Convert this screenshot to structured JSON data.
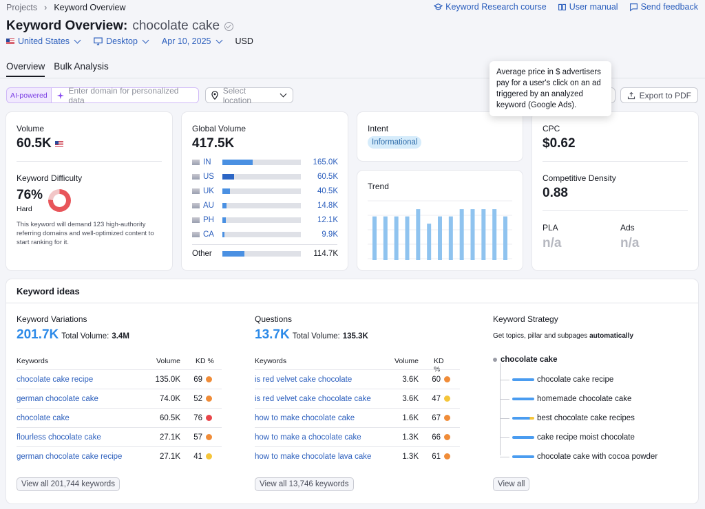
{
  "breadcrumb": {
    "root": "Projects",
    "current": "Keyword Overview"
  },
  "toplinks": {
    "course": "Keyword Research course",
    "manual": "User manual",
    "feedback": "Send feedback"
  },
  "title": {
    "label": "Keyword Overview:",
    "keyword": "chocolate cake"
  },
  "filters": {
    "country": "United States",
    "device": "Desktop",
    "date": "Apr 10, 2025",
    "currency": "USD"
  },
  "tabs": [
    "Overview",
    "Bulk Analysis"
  ],
  "ai": {
    "tag": "AI-powered",
    "placeholder": "Enter domain for personalized data",
    "location_placeholder": "Select location"
  },
  "buttons": {
    "small_count": "0",
    "export": "Export to PDF"
  },
  "tooltip": "Average price in $ advertisers pay for a user's click on an ad triggered by an analyzed keyword (Google Ads).",
  "volume": {
    "label": "Volume",
    "value": "60.5K"
  },
  "kd": {
    "label": "Keyword Difficulty",
    "value": "76%",
    "level": "Hard",
    "percent": 76,
    "text": "This keyword will demand 123 high-authority referring domains and well-optimized content to start ranking for it."
  },
  "global": {
    "label": "Global Volume",
    "value": "417.5K",
    "rows": [
      {
        "code": "IN",
        "value": "165.0K",
        "fill": 0.39
      },
      {
        "code": "US",
        "value": "60.5K",
        "fill": 0.15
      },
      {
        "code": "UK",
        "value": "40.5K",
        "fill": 0.1
      },
      {
        "code": "AU",
        "value": "14.8K",
        "fill": 0.05
      },
      {
        "code": "PH",
        "value": "12.1K",
        "fill": 0.04
      },
      {
        "code": "CA",
        "value": "9.9K",
        "fill": 0.03
      }
    ],
    "other": {
      "label": "Other",
      "value": "114.7K",
      "fill": 0.28
    }
  },
  "intent": {
    "label": "Intent",
    "value": "Informational"
  },
  "trend": {
    "label": "Trend",
    "values": [
      0.72,
      0.72,
      0.72,
      0.72,
      0.84,
      0.6,
      0.72,
      0.72,
      0.84,
      0.84,
      0.84,
      0.84,
      0.72
    ]
  },
  "cpc": {
    "label": "CPC",
    "value": "$0.62"
  },
  "density": {
    "label": "Competitive Density",
    "value": "0.88"
  },
  "pla": {
    "label": "PLA",
    "value": "n/a"
  },
  "ads": {
    "label": "Ads",
    "value": "n/a"
  },
  "ideas": {
    "title": "Keyword ideas",
    "variations": {
      "title": "Keyword Variations",
      "count": "201.7K",
      "total_label": "Total Volume:",
      "total": "3.4M",
      "head": {
        "kw": "Keywords",
        "vol": "Volume",
        "kd": "KD %"
      },
      "rows": [
        {
          "kw": "chocolate cake recipe",
          "vol": "135.0K",
          "kd": "69",
          "color": "#f08c38"
        },
        {
          "kw": "german chocolate cake",
          "vol": "74.0K",
          "kd": "52",
          "color": "#f08c38"
        },
        {
          "kw": "chocolate cake",
          "vol": "60.5K",
          "kd": "76",
          "color": "#e8454a"
        },
        {
          "kw": "flourless chocolate cake",
          "vol": "27.1K",
          "kd": "57",
          "color": "#f08c38"
        },
        {
          "kw": "german chocolate cake recipe",
          "vol": "27.1K",
          "kd": "41",
          "color": "#f5c53a"
        }
      ],
      "viewall": "View all 201,744 keywords"
    },
    "questions": {
      "title": "Questions",
      "count": "13.7K",
      "total_label": "Total Volume:",
      "total": "135.3K",
      "head": {
        "kw": "Keywords",
        "vol": "Volume",
        "kd": "KD %"
      },
      "rows": [
        {
          "kw": "is red velvet cake chocolate",
          "vol": "3.6K",
          "kd": "60",
          "color": "#f08c38"
        },
        {
          "kw": "is red velvet cake chocolate cake",
          "vol": "3.6K",
          "kd": "47",
          "color": "#f5c53a"
        },
        {
          "kw": "how to make chocolate cake",
          "vol": "1.6K",
          "kd": "67",
          "color": "#f08c38"
        },
        {
          "kw": "how to make a chocolate cake",
          "vol": "1.3K",
          "kd": "66",
          "color": "#f08c38"
        },
        {
          "kw": "how to make chocolate lava cake",
          "vol": "1.3K",
          "kd": "61",
          "color": "#f08c38"
        }
      ],
      "viewall": "View all 13,746 keywords"
    },
    "strategy": {
      "title": "Keyword Strategy",
      "subtitle": "Get topics, pillar and subpages",
      "subtitle_bold": "automatically",
      "root": "chocolate cake",
      "items": [
        "chocolate cake recipe",
        "homemade chocolate cake",
        "best chocolate cake recipes",
        "cake recipe moist chocolate",
        "chocolate cake with cocoa powder"
      ],
      "viewall": "View all"
    }
  }
}
